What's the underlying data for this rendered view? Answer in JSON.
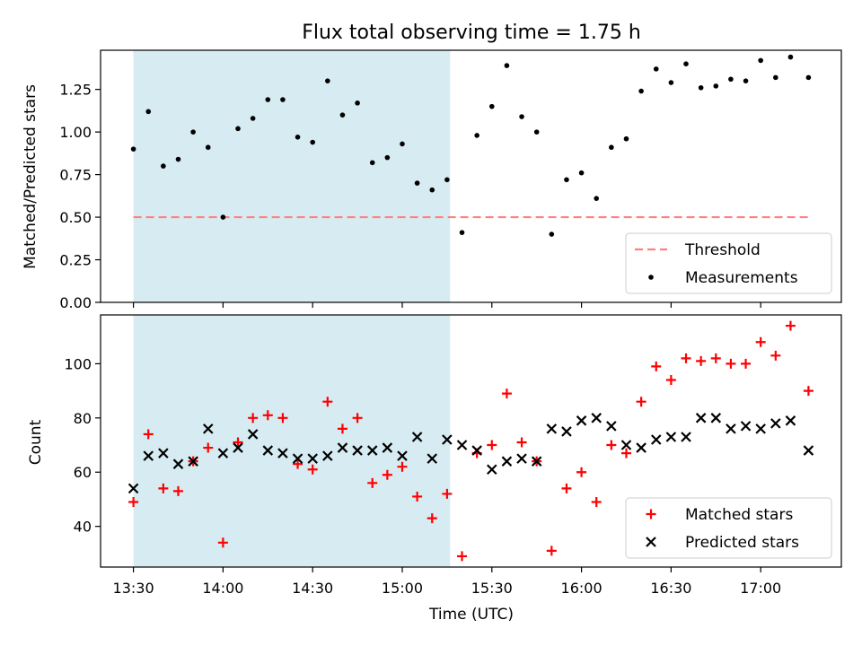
{
  "chart_data": [
    {
      "type": "scatter",
      "title": "Flux total observing time = 1.75 h",
      "xlabel": "",
      "ylabel": "Matched/Predicted stars",
      "ylim": [
        0,
        1.48
      ],
      "xlim": [
        "13:19",
        "17:27"
      ],
      "yticks": [
        "0.00",
        "0.25",
        "0.50",
        "0.75",
        "1.00",
        "1.25"
      ],
      "shaded_region": {
        "from": "13:30",
        "to": "15:16",
        "color": "#add8e6"
      },
      "threshold": {
        "name": "Threshold",
        "value": 0.5,
        "from": "13:30",
        "to": "17:16",
        "color": "#ff8080"
      },
      "legend": {
        "position": "lower right",
        "entries": [
          "Threshold",
          "Measurements"
        ]
      },
      "series": [
        {
          "name": "Measurements",
          "marker": "point",
          "color": "#000000",
          "x": [
            "13:30",
            "13:35",
            "13:40",
            "13:45",
            "13:50",
            "13:55",
            "14:00",
            "14:05",
            "14:10",
            "14:15",
            "14:20",
            "14:25",
            "14:30",
            "14:35",
            "14:40",
            "14:45",
            "14:50",
            "14:55",
            "15:00",
            "15:05",
            "15:10",
            "15:15",
            "15:20",
            "15:25",
            "15:30",
            "15:35",
            "15:40",
            "15:45",
            "15:50",
            "15:55",
            "16:00",
            "16:05",
            "16:10",
            "16:15",
            "16:20",
            "16:25",
            "16:30",
            "16:35",
            "16:40",
            "16:45",
            "16:50",
            "16:55",
            "17:00",
            "17:05",
            "17:10",
            "17:16"
          ],
          "y": [
            0.9,
            1.12,
            0.8,
            0.84,
            1.0,
            0.91,
            0.5,
            1.02,
            1.08,
            1.19,
            1.19,
            0.97,
            0.94,
            1.3,
            1.1,
            1.17,
            0.82,
            0.85,
            0.93,
            0.7,
            0.66,
            0.72,
            0.41,
            0.98,
            1.15,
            1.39,
            1.09,
            1.0,
            0.4,
            0.72,
            0.76,
            0.61,
            0.91,
            0.96,
            1.24,
            1.37,
            1.29,
            1.4,
            1.26,
            1.27,
            1.31,
            1.3,
            1.42,
            1.32,
            1.44,
            1.32
          ]
        }
      ]
    },
    {
      "type": "scatter",
      "title": "",
      "xlabel": "Time (UTC)",
      "ylabel": "Count",
      "ylim": [
        25,
        118
      ],
      "xlim": [
        "13:19",
        "17:27"
      ],
      "xticks": [
        "13:30",
        "14:00",
        "14:30",
        "15:00",
        "15:30",
        "16:00",
        "16:30",
        "17:00"
      ],
      "yticks": [
        "40",
        "60",
        "80",
        "100"
      ],
      "shaded_region": {
        "from": "13:30",
        "to": "15:16",
        "color": "#add8e6"
      },
      "legend": {
        "position": "lower right",
        "entries": [
          "Matched stars",
          "Predicted stars"
        ]
      },
      "series": [
        {
          "name": "Matched stars",
          "marker": "+",
          "color": "#ff0000",
          "x": [
            "13:30",
            "13:35",
            "13:40",
            "13:45",
            "13:50",
            "13:55",
            "14:00",
            "14:05",
            "14:10",
            "14:15",
            "14:20",
            "14:25",
            "14:30",
            "14:35",
            "14:40",
            "14:45",
            "14:50",
            "14:55",
            "15:00",
            "15:05",
            "15:10",
            "15:15",
            "15:20",
            "15:25",
            "15:30",
            "15:35",
            "15:40",
            "15:45",
            "15:50",
            "15:55",
            "16:00",
            "16:05",
            "16:10",
            "16:15",
            "16:20",
            "16:25",
            "16:30",
            "16:35",
            "16:40",
            "16:45",
            "16:50",
            "16:55",
            "17:00",
            "17:05",
            "17:10",
            "17:16"
          ],
          "y": [
            49,
            74,
            54,
            53,
            64,
            69,
            34,
            71,
            80,
            81,
            80,
            63,
            61,
            86,
            76,
            80,
            56,
            59,
            62,
            51,
            43,
            52,
            29,
            67,
            70,
            89,
            71,
            64,
            31,
            54,
            60,
            49,
            70,
            67,
            86,
            99,
            94,
            102,
            101,
            102,
            100,
            100,
            108,
            103,
            114,
            90
          ]
        },
        {
          "name": "Predicted stars",
          "marker": "x",
          "color": "#000000",
          "x": [
            "13:30",
            "13:35",
            "13:40",
            "13:45",
            "13:50",
            "13:55",
            "14:00",
            "14:05",
            "14:10",
            "14:15",
            "14:20",
            "14:25",
            "14:30",
            "14:35",
            "14:40",
            "14:45",
            "14:50",
            "14:55",
            "15:00",
            "15:05",
            "15:10",
            "15:15",
            "15:20",
            "15:25",
            "15:30",
            "15:35",
            "15:40",
            "15:45",
            "15:50",
            "15:55",
            "16:00",
            "16:05",
            "16:10",
            "16:15",
            "16:20",
            "16:25",
            "16:30",
            "16:35",
            "16:40",
            "16:45",
            "16:50",
            "16:55",
            "17:00",
            "17:05",
            "17:10",
            "17:16"
          ],
          "y": [
            54,
            66,
            67,
            63,
            64,
            76,
            67,
            69,
            74,
            68,
            67,
            65,
            65,
            66,
            69,
            68,
            68,
            69,
            66,
            73,
            65,
            72,
            70,
            68,
            61,
            64,
            65,
            64,
            76,
            75,
            79,
            80,
            77,
            70,
            69,
            72,
            73,
            73,
            80,
            80,
            76,
            77,
            76,
            78,
            79,
            68
          ]
        }
      ]
    }
  ]
}
